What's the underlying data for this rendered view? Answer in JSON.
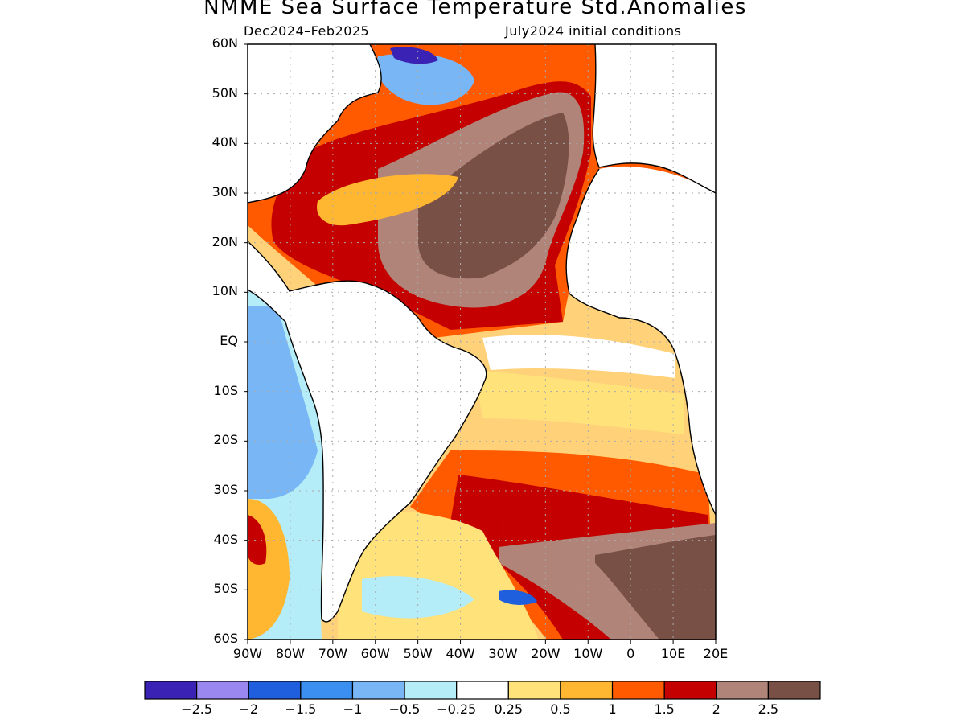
{
  "title": "NMME Sea Surface Temperature Std.Anomalies",
  "subtitle_left": "Dec2024–Feb2025",
  "subtitle_right": "July2024 initial conditions",
  "lat_labels": [
    "60N",
    "50N",
    "40N",
    "30N",
    "20N",
    "10N",
    "EQ",
    "10S",
    "20S",
    "30S",
    "40S",
    "50S",
    "60S"
  ],
  "lon_labels": [
    "90W",
    "80W",
    "70W",
    "60W",
    "50W",
    "40W",
    "30W",
    "20W",
    "10W",
    "0",
    "10E",
    "20E"
  ],
  "colorbar": {
    "labels": [
      "−2.5",
      "−2",
      "−1.5",
      "−1",
      "−0.5",
      "−0.25",
      "0.25",
      "0.5",
      "1",
      "1.5",
      "2",
      "2.5"
    ],
    "colors": [
      "#3a22b4",
      "#9a87f0",
      "#1f5fde",
      "#3b8ff0",
      "#78b6f5",
      "#b4ecf8",
      "#ffffff",
      "#ffe27a",
      "#ffb630",
      "#ff5a00",
      "#c40000",
      "#b08478",
      "#785046"
    ]
  },
  "colors": {
    "land": "#ffffff",
    "coastline": "#000000",
    "grid": "#aaaaaa"
  }
}
